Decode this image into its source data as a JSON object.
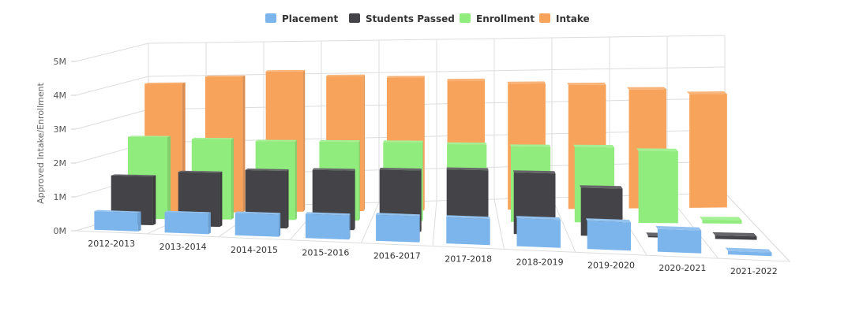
{
  "chart_data": {
    "type": "bar",
    "title": "",
    "xlabel": "",
    "ylabel": "Approved Intake/Enrollment",
    "ylim": [
      0,
      5000000
    ],
    "yticks": [
      "0M",
      "1M",
      "2M",
      "3M",
      "4M",
      "5M"
    ],
    "grid": true,
    "legend_position": "top-center",
    "categories": [
      "2012-2013",
      "2013-2014",
      "2014-2015",
      "2015-2016",
      "2016-2017",
      "2017-2018",
      "2018-2019",
      "2019-2020",
      "2020-2021",
      "2021-2022"
    ],
    "series": [
      {
        "name": "Placement",
        "color": "#7cb5ec",
        "values": [
          550000,
          600000,
          650000,
          700000,
          750000,
          750000,
          800000,
          800000,
          650000,
          100000
        ]
      },
      {
        "name": "Students Passed",
        "color": "#434348",
        "values": [
          1450000,
          1600000,
          1700000,
          1750000,
          1800000,
          1850000,
          1800000,
          1400000,
          50000,
          100000
        ]
      },
      {
        "name": "Enrollment",
        "color": "#90ed7d",
        "values": [
          2450000,
          2400000,
          2350000,
          2350000,
          2350000,
          2300000,
          2250000,
          2250000,
          2150000,
          100000
        ]
      },
      {
        "name": "Intake",
        "color": "#f7a35c",
        "values": [
          3900000,
          4100000,
          4250000,
          4100000,
          4050000,
          3950000,
          3850000,
          3800000,
          3650000,
          3500000
        ]
      }
    ]
  }
}
